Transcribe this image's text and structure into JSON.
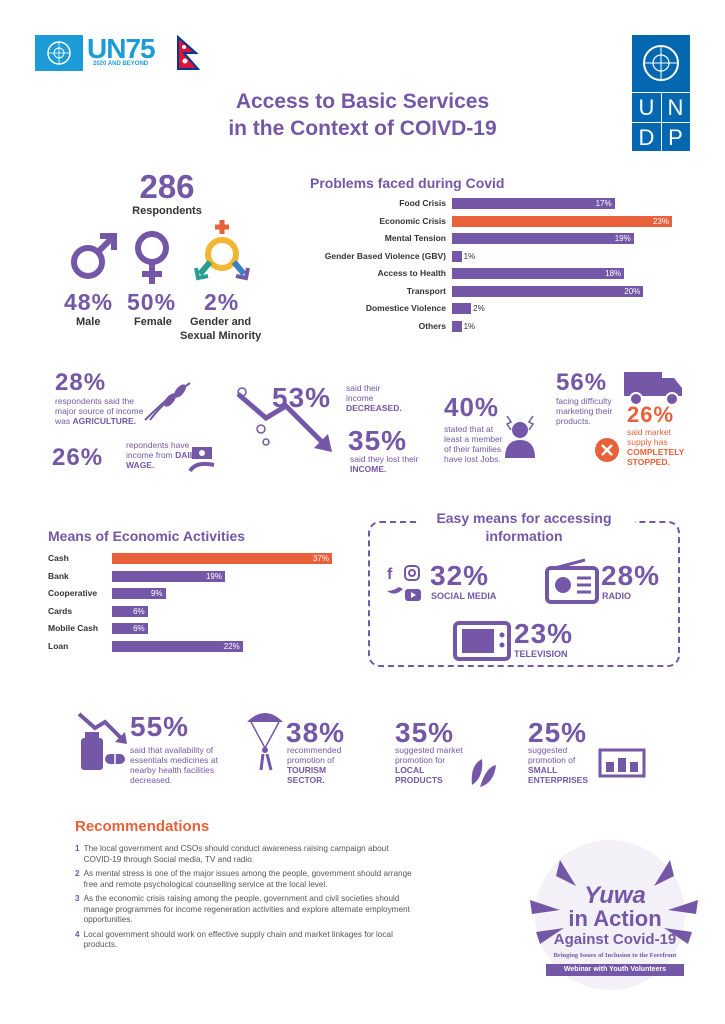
{
  "header": {
    "un75_text": "UN75",
    "un75_sub": "2020 AND BEYOND",
    "undp_letters": [
      "U",
      "N",
      "D",
      "P"
    ],
    "title_line1": "Access to Basic Services",
    "title_line2": "in the Context of COIVD-19"
  },
  "respondents": {
    "count": "286",
    "label": "Respondents",
    "male": {
      "pct": "48%",
      "label": "Male"
    },
    "female": {
      "pct": "50%",
      "label": "Female"
    },
    "minority": {
      "pct": "2%",
      "label_line1": "Gender and",
      "label_line2": "Sexual Minority"
    }
  },
  "problems": {
    "title": "Problems faced during Covid",
    "max": 23,
    "items": [
      {
        "label": "Food Crisis",
        "value": 17,
        "text": "17%",
        "highlight": false
      },
      {
        "label": "Economic Crisis",
        "value": 23,
        "text": "23%",
        "highlight": true
      },
      {
        "label": "Mental Tension",
        "value": 19,
        "text": "19%",
        "highlight": false
      },
      {
        "label": "Gender Based Violence (GBV)",
        "value": 1,
        "text": "1%",
        "highlight": false
      },
      {
        "label": "Access to Health",
        "value": 18,
        "text": "18%",
        "highlight": false
      },
      {
        "label": "Transport",
        "value": 20,
        "text": "20%",
        "highlight": false
      },
      {
        "label": "Domestice Violence",
        "value": 2,
        "text": "2%",
        "highlight": false
      },
      {
        "label": "Others",
        "value": 1,
        "text": "1%",
        "highlight": false
      }
    ]
  },
  "income": {
    "agri_pct": "28%",
    "agri_text": "respondents said the major source of income was",
    "agri_strong": "AGRICULTURE.",
    "wage_pct": "26%",
    "wage_text": "repondents have income from",
    "wage_strong": "DAILY WAGE.",
    "decreased_pct": "53%",
    "decreased_text": "said their income",
    "decreased_strong": "DECREASED.",
    "lost_pct": "35%",
    "lost_text": "said they lost their",
    "lost_strong": "INCOME.",
    "jobs_pct": "40%",
    "jobs_text": "stated that at least a member of their families have lost Jobs.",
    "market_pct": "56%",
    "market_text": "facing difficulty marketing their products.",
    "supply_pct": "26%",
    "supply_text": "said market supply has",
    "supply_strong": "COMPLETELY STOPPED."
  },
  "economic": {
    "title": "Means of Economic Activities",
    "max": 37,
    "items": [
      {
        "label": "Cash",
        "value": 37,
        "text": "37%",
        "highlight": true
      },
      {
        "label": "Bank",
        "value": 19,
        "text": "19%",
        "highlight": false
      },
      {
        "label": "Cooperative",
        "value": 9,
        "text": "9%",
        "highlight": false
      },
      {
        "label": "Cards",
        "value": 6,
        "text": "6%",
        "highlight": false
      },
      {
        "label": "Mobile Cash",
        "value": 6,
        "text": "6%",
        "highlight": false
      },
      {
        "label": "Loan",
        "value": 22,
        "text": "22%",
        "highlight": false
      }
    ]
  },
  "information": {
    "title_line1": "Easy means for accessing",
    "title_line2": "information",
    "social": {
      "pct": "32%",
      "label": "SOCIAL MEDIA"
    },
    "radio": {
      "pct": "28%",
      "label": "RADIO"
    },
    "tv": {
      "pct": "23%",
      "label": "TELEVISION"
    }
  },
  "bottom": {
    "med_pct": "55%",
    "med_text": "said that availability of essentials medicines at nearby health facilities decreased.",
    "tour_pct": "38%",
    "tour_text": "recommended promotion of",
    "tour_strong": "TOURISM SECTOR.",
    "local_pct": "35%",
    "local_text": "suggested market promotion for",
    "local_strong": "LOCAL PRODUCTS",
    "small_pct": "25%",
    "small_text": "suggested promotion of",
    "small_strong": "SMALL ENTERPRISES"
  },
  "recommendations": {
    "title": "Recommendations",
    "items": [
      {
        "num": "1",
        "text": "The local government and CSOs should conduct awareness raising campaign about COVID-19 through Social media, TV and radio."
      },
      {
        "num": "2",
        "text": "As mental stress is one of the major issues among the people, government should arrange free and remote psychological counselling service at the local level."
      },
      {
        "num": "3",
        "text": "As the economic crisis raising among the people, government and civil societies should manage programmes for income regeneration activities and explore alternate employment opportunities."
      },
      {
        "num": "4",
        "text": "Local government should work on effective supply chain and market linkages for local products."
      }
    ]
  },
  "yuwa": {
    "line1": "Yuwa",
    "line2": "in Action",
    "line3": "Against Covid-19",
    "tagline": "Bringing Issues of Inclusion to the Forefront",
    "ribbon": "Webinar with Youth Volunteers"
  },
  "colors": {
    "purple": "#7457a6",
    "orange": "#e8613a",
    "un_blue": "#1d9bd7",
    "undp_blue": "#0468b1"
  }
}
